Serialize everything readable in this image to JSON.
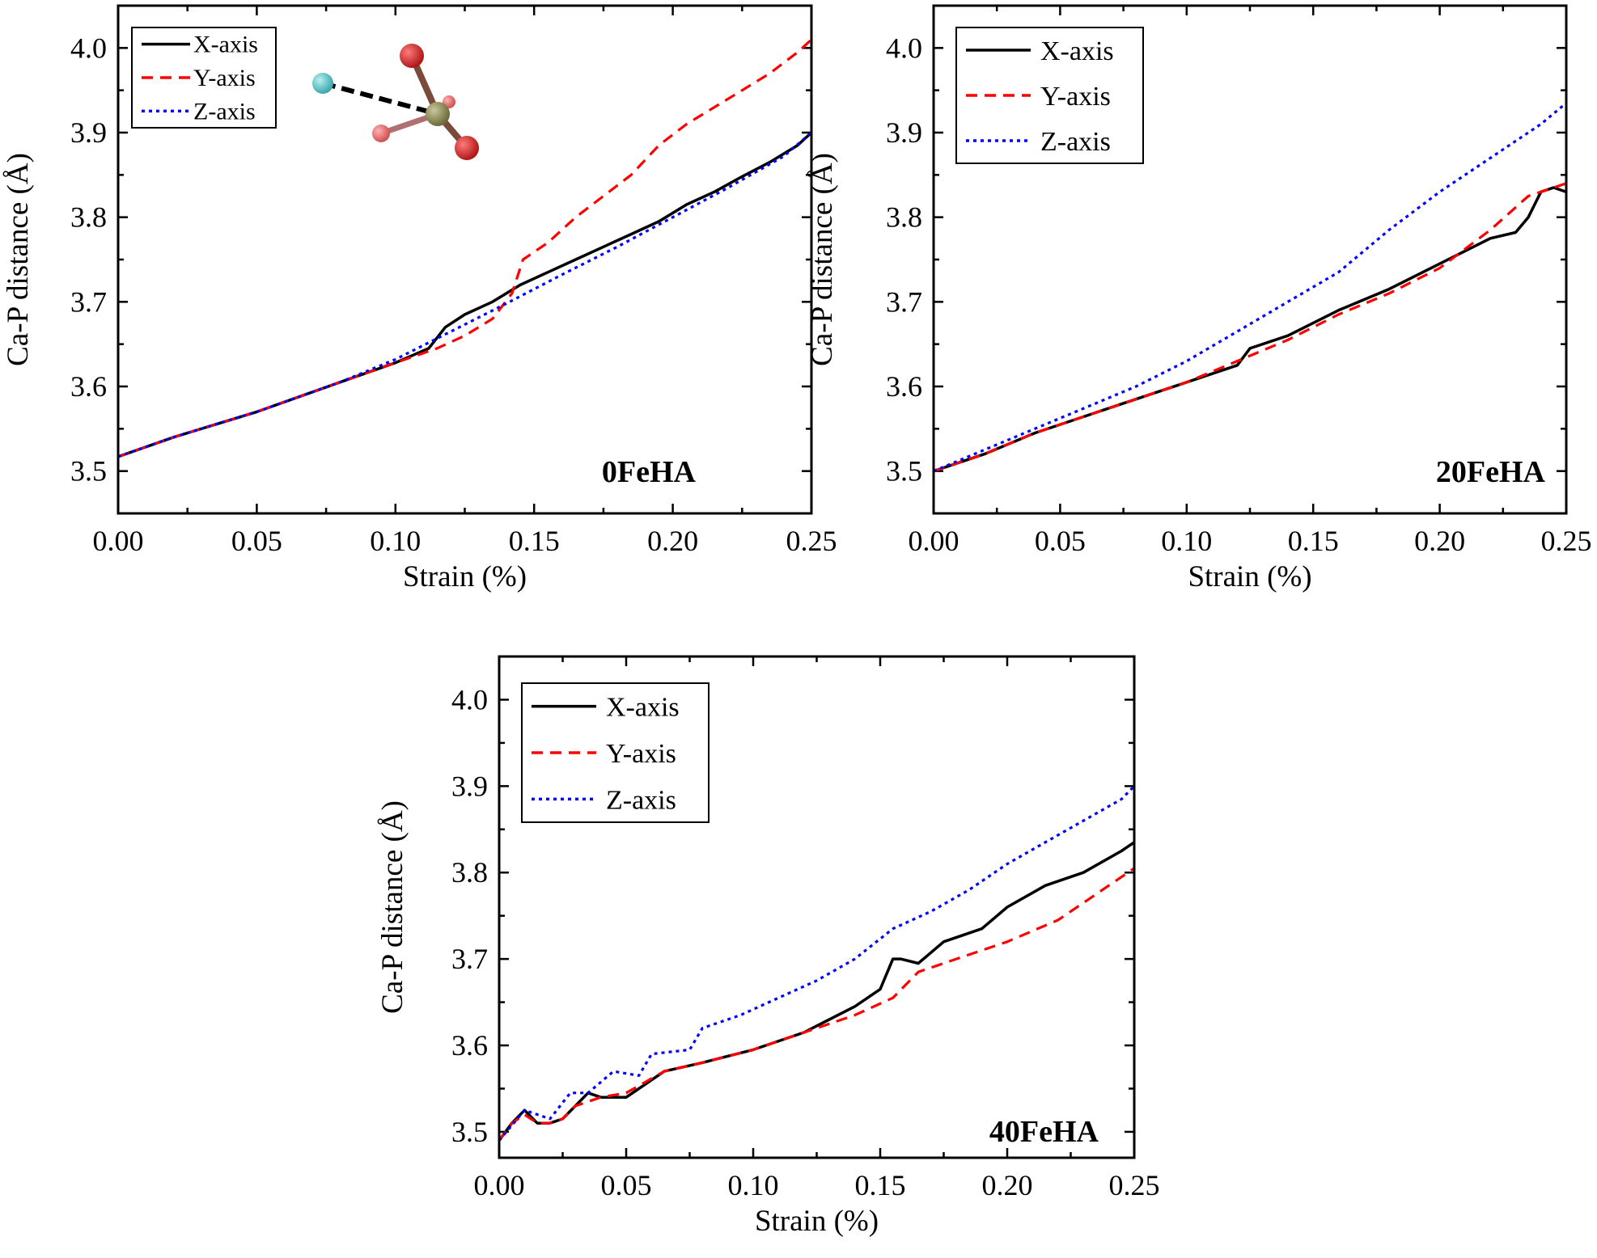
{
  "chart_data": [
    {
      "type": "line",
      "panel_label": "0FeHA",
      "xlabel": "Strain (%)",
      "ylabel": "Ca-P distance (Å)",
      "xlim": [
        0.0,
        0.25
      ],
      "ylim": [
        3.45,
        4.05
      ],
      "x_ticks": [
        "0.00",
        "0.05",
        "0.10",
        "0.15",
        "0.20",
        "0.25"
      ],
      "y_ticks": [
        "3.5",
        "3.6",
        "3.7",
        "3.8",
        "3.9",
        "4.0"
      ],
      "legend": [
        "X-axis",
        "Y-axis",
        "Z-axis"
      ],
      "legend_position": "top-left",
      "inset": "PO4 tetrahedron with Ca atom (molecular model)",
      "series": [
        {
          "name": "X-axis",
          "color": "#000000",
          "style": "solid",
          "x": [
            0.0,
            0.02,
            0.05,
            0.08,
            0.1,
            0.112,
            0.118,
            0.125,
            0.135,
            0.145,
            0.155,
            0.165,
            0.175,
            0.185,
            0.195,
            0.205,
            0.215,
            0.225,
            0.235,
            0.245,
            0.25
          ],
          "y": [
            3.517,
            3.54,
            3.57,
            3.605,
            3.628,
            3.645,
            3.67,
            3.685,
            3.7,
            3.72,
            3.735,
            3.75,
            3.765,
            3.78,
            3.795,
            3.815,
            3.83,
            3.848,
            3.865,
            3.885,
            3.9
          ]
        },
        {
          "name": "Y-axis",
          "color": "#ff0000",
          "style": "dashed",
          "x": [
            0.0,
            0.02,
            0.05,
            0.08,
            0.1,
            0.115,
            0.125,
            0.135,
            0.142,
            0.146,
            0.155,
            0.165,
            0.175,
            0.185,
            0.195,
            0.205,
            0.215,
            0.225,
            0.235,
            0.245,
            0.25
          ],
          "y": [
            3.517,
            3.54,
            3.57,
            3.605,
            3.628,
            3.645,
            3.66,
            3.68,
            3.71,
            3.75,
            3.77,
            3.8,
            3.825,
            3.85,
            3.885,
            3.91,
            3.93,
            3.95,
            3.97,
            3.995,
            4.01
          ]
        },
        {
          "name": "Z-axis",
          "color": "#0000ff",
          "style": "dotted",
          "x": [
            0.0,
            0.02,
            0.05,
            0.08,
            0.1,
            0.12,
            0.14,
            0.16,
            0.18,
            0.2,
            0.22,
            0.24,
            0.25
          ],
          "y": [
            3.517,
            3.54,
            3.57,
            3.605,
            3.632,
            3.665,
            3.698,
            3.732,
            3.765,
            3.8,
            3.835,
            3.872,
            3.9
          ]
        }
      ]
    },
    {
      "type": "line",
      "panel_label": "20FeHA",
      "xlabel": "Strain (%)",
      "ylabel": "Ca-P distance (Å)",
      "xlim": [
        0.0,
        0.25
      ],
      "ylim": [
        3.45,
        4.05
      ],
      "x_ticks": [
        "0.00",
        "0.05",
        "0.10",
        "0.15",
        "0.20",
        "0.25"
      ],
      "y_ticks": [
        "3.5",
        "3.6",
        "3.7",
        "3.8",
        "3.9",
        "4.0"
      ],
      "legend": [
        "X-axis",
        "Y-axis",
        "Z-axis"
      ],
      "legend_position": "top-left",
      "series": [
        {
          "name": "X-axis",
          "color": "#000000",
          "style": "solid",
          "x": [
            0.0,
            0.02,
            0.04,
            0.06,
            0.08,
            0.1,
            0.12,
            0.125,
            0.14,
            0.16,
            0.18,
            0.2,
            0.22,
            0.23,
            0.235,
            0.24,
            0.245,
            0.25
          ],
          "y": [
            3.5,
            3.52,
            3.545,
            3.565,
            3.585,
            3.605,
            3.625,
            3.645,
            3.66,
            3.69,
            3.715,
            3.745,
            3.775,
            3.782,
            3.8,
            3.83,
            3.835,
            3.83
          ]
        },
        {
          "name": "Y-axis",
          "color": "#ff0000",
          "style": "dashed",
          "x": [
            0.0,
            0.02,
            0.04,
            0.06,
            0.08,
            0.1,
            0.12,
            0.14,
            0.16,
            0.18,
            0.2,
            0.22,
            0.235,
            0.245,
            0.25
          ],
          "y": [
            3.5,
            3.52,
            3.545,
            3.565,
            3.585,
            3.605,
            3.63,
            3.655,
            3.685,
            3.71,
            3.74,
            3.785,
            3.825,
            3.835,
            3.84
          ]
        },
        {
          "name": "Z-axis",
          "color": "#0000ff",
          "style": "dotted",
          "x": [
            0.0,
            0.02,
            0.04,
            0.06,
            0.08,
            0.1,
            0.12,
            0.14,
            0.16,
            0.18,
            0.2,
            0.22,
            0.24,
            0.25
          ],
          "y": [
            3.5,
            3.525,
            3.55,
            3.575,
            3.6,
            3.63,
            3.665,
            3.7,
            3.735,
            3.785,
            3.83,
            3.87,
            3.91,
            3.935
          ]
        }
      ]
    },
    {
      "type": "line",
      "panel_label": "40FeHA",
      "xlabel": "Strain (%)",
      "ylabel": "Ca-P distance (Å)",
      "xlim": [
        0.0,
        0.25
      ],
      "ylim": [
        3.47,
        4.05
      ],
      "x_ticks": [
        "0.00",
        "0.05",
        "0.10",
        "0.15",
        "0.20",
        "0.25"
      ],
      "y_ticks": [
        "3.5",
        "3.6",
        "3.7",
        "3.8",
        "3.9",
        "4.0"
      ],
      "legend": [
        "X-axis",
        "Y-axis",
        "Z-axis"
      ],
      "legend_position": "top-left",
      "series": [
        {
          "name": "X-axis",
          "color": "#000000",
          "style": "solid",
          "x": [
            0.0,
            0.005,
            0.01,
            0.015,
            0.02,
            0.025,
            0.03,
            0.035,
            0.04,
            0.05,
            0.055,
            0.065,
            0.08,
            0.1,
            0.12,
            0.14,
            0.15,
            0.155,
            0.158,
            0.165,
            0.175,
            0.19,
            0.2,
            0.215,
            0.23,
            0.245,
            0.25
          ],
          "y": [
            3.49,
            3.51,
            3.525,
            3.51,
            3.51,
            3.515,
            3.53,
            3.545,
            3.54,
            3.54,
            3.55,
            3.57,
            3.58,
            3.595,
            3.615,
            3.645,
            3.665,
            3.7,
            3.7,
            3.695,
            3.72,
            3.735,
            3.76,
            3.785,
            3.8,
            3.825,
            3.835
          ]
        },
        {
          "name": "Y-axis",
          "color": "#ff0000",
          "style": "dashed",
          "x": [
            0.0,
            0.005,
            0.01,
            0.015,
            0.02,
            0.025,
            0.03,
            0.04,
            0.05,
            0.065,
            0.08,
            0.1,
            0.12,
            0.14,
            0.155,
            0.165,
            0.18,
            0.2,
            0.22,
            0.235,
            0.25
          ],
          "y": [
            3.49,
            3.51,
            3.52,
            3.51,
            3.51,
            3.515,
            3.53,
            3.54,
            3.545,
            3.57,
            3.58,
            3.595,
            3.615,
            3.635,
            3.655,
            3.685,
            3.7,
            3.72,
            3.745,
            3.775,
            3.805
          ]
        },
        {
          "name": "Z-axis",
          "color": "#0000ff",
          "style": "dotted",
          "x": [
            0.0,
            0.01,
            0.02,
            0.028,
            0.035,
            0.045,
            0.055,
            0.06,
            0.075,
            0.08,
            0.095,
            0.11,
            0.125,
            0.14,
            0.155,
            0.17,
            0.185,
            0.2,
            0.215,
            0.23,
            0.245,
            0.25
          ],
          "y": [
            3.49,
            3.525,
            3.515,
            3.545,
            3.545,
            3.57,
            3.565,
            3.59,
            3.595,
            3.62,
            3.635,
            3.655,
            3.675,
            3.7,
            3.735,
            3.755,
            3.78,
            3.81,
            3.835,
            3.86,
            3.885,
            3.9
          ]
        }
      ]
    }
  ]
}
